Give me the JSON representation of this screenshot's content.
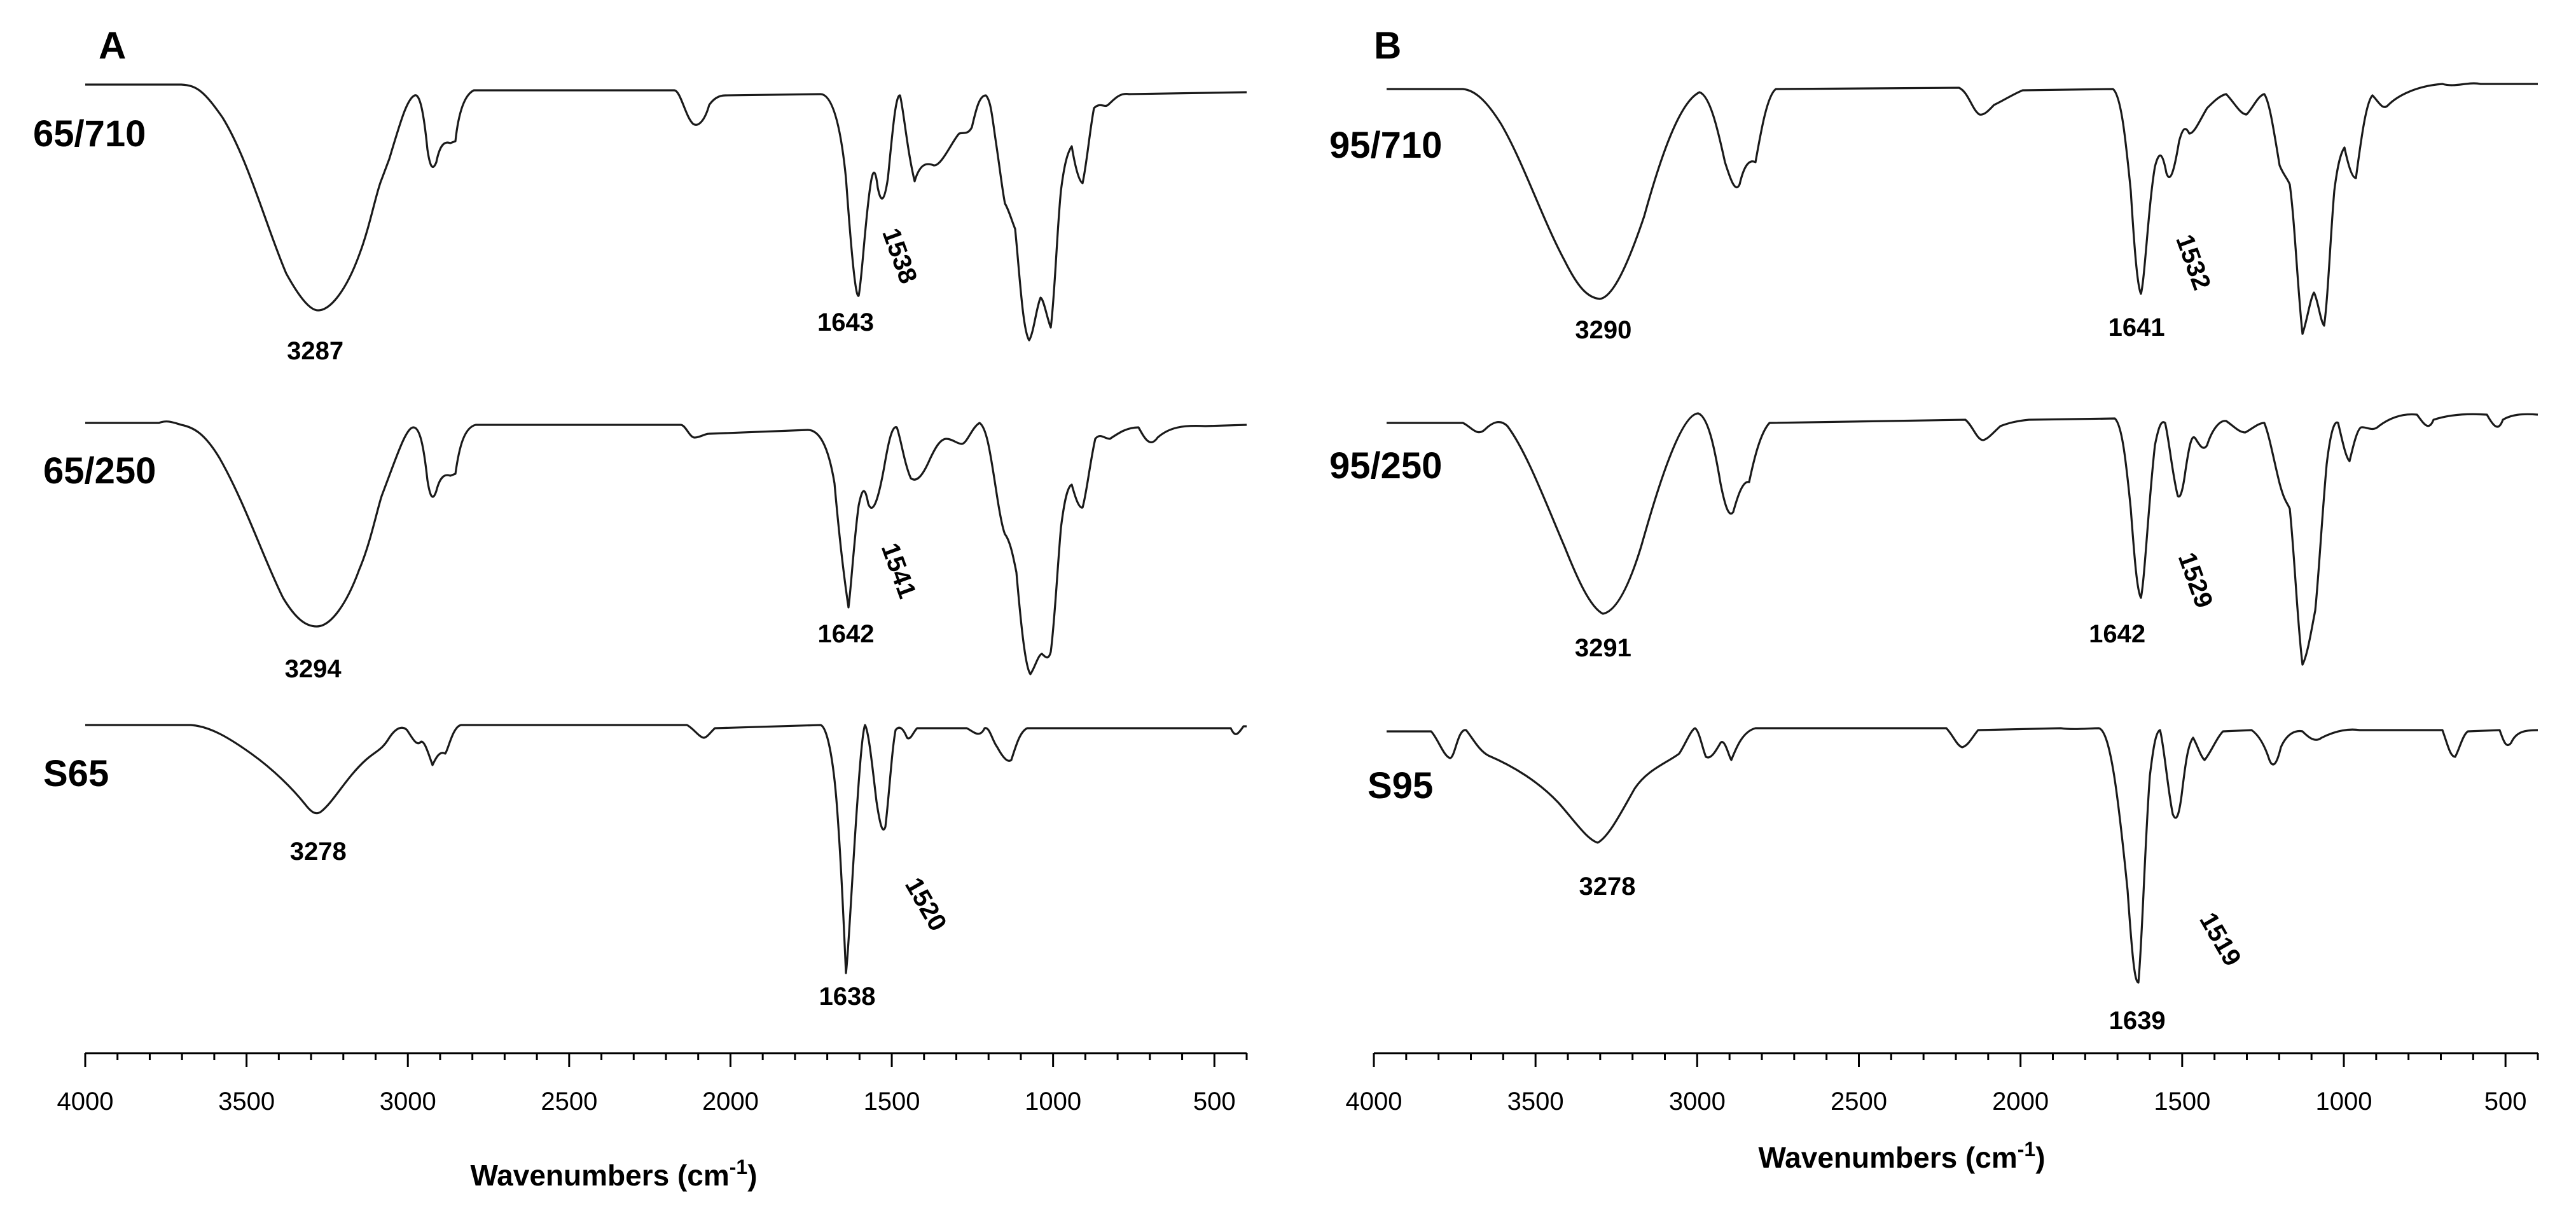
{
  "chart_data": [
    {
      "type": "line",
      "panel_label": "A",
      "xlabel": "Wavenumbers (cm-1)",
      "xlabel_main": "Wavenumbers (cm",
      "xlabel_sup": "-1",
      "xlabel_close": ")",
      "xlim": [
        4000,
        400
      ],
      "x_reversed": true,
      "xticks": [
        4000,
        3500,
        3000,
        2500,
        2000,
        1500,
        1000,
        500
      ],
      "xtick_labels": [
        "4000",
        "3500",
        "3000",
        "2500",
        "2000",
        "1500",
        "1000",
        "500"
      ],
      "minor_tick_step": 100,
      "grid": false,
      "series": [
        {
          "name": "65/710",
          "peaks": [
            {
              "x": 3287,
              "label": "3287"
            },
            {
              "x": 1643,
              "label": "1643"
            },
            {
              "x": 1538,
              "label": "1538"
            }
          ]
        },
        {
          "name": "65/250",
          "peaks": [
            {
              "x": 3294,
              "label": "3294"
            },
            {
              "x": 1642,
              "label": "1642"
            },
            {
              "x": 1541,
              "label": "1541"
            }
          ]
        },
        {
          "name": "S65",
          "peaks": [
            {
              "x": 3278,
              "label": "3278"
            },
            {
              "x": 1638,
              "label": "1638"
            },
            {
              "x": 1520,
              "label": "1520"
            }
          ]
        }
      ]
    },
    {
      "type": "line",
      "panel_label": "B",
      "xlabel": "Wavenumbers (cm-1)",
      "xlabel_main": "Wavenumbers (cm",
      "xlabel_sup": "-1",
      "xlabel_close": ")",
      "xlim": [
        4000,
        400
      ],
      "x_reversed": true,
      "xticks": [
        4000,
        3500,
        3000,
        2500,
        2000,
        1500,
        1000,
        500
      ],
      "xtick_labels": [
        "4000",
        "3500",
        "3000",
        "2500",
        "2000",
        "1500",
        "1000",
        "500"
      ],
      "minor_tick_step": 100,
      "grid": false,
      "series": [
        {
          "name": "95/710",
          "peaks": [
            {
              "x": 3290,
              "label": "3290"
            },
            {
              "x": 1641,
              "label": "1641"
            },
            {
              "x": 1532,
              "label": "1532"
            }
          ]
        },
        {
          "name": "95/250",
          "peaks": [
            {
              "x": 3291,
              "label": "3291"
            },
            {
              "x": 1642,
              "label": "1642"
            },
            {
              "x": 1529,
              "label": "1529"
            }
          ]
        },
        {
          "name": "S95",
          "peaks": [
            {
              "x": 3278,
              "label": "3278"
            },
            {
              "x": 1639,
              "label": "1639"
            },
            {
              "x": 1519,
              "label": "1519"
            }
          ]
        }
      ]
    }
  ]
}
